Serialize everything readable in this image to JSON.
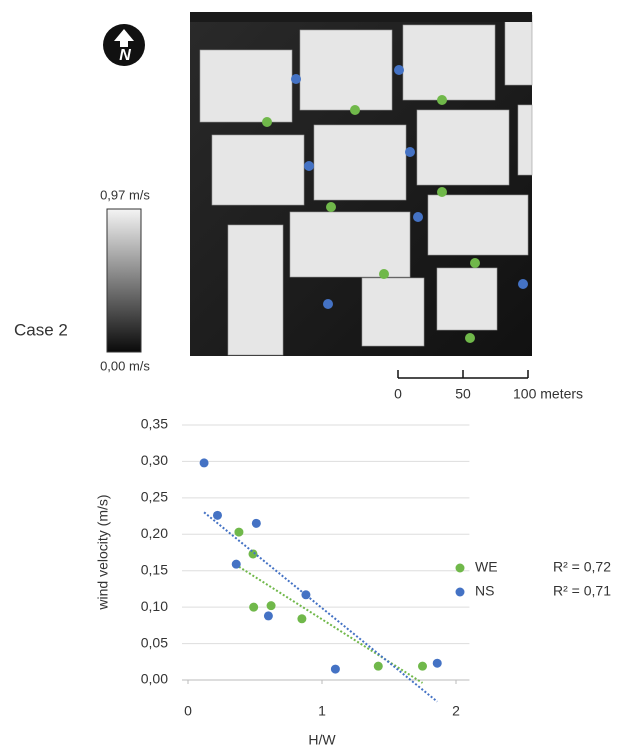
{
  "map": {
    "north": "N",
    "legend_max": "0,97 m/s",
    "legend_min": "0,00 m/s",
    "case": "Case 2",
    "scale": [
      "0",
      "50",
      "100 meters"
    ]
  },
  "chart_data": {
    "type": "scatter",
    "x_label": "H/W",
    "y_label": "wind velocity (m/s)",
    "xlim": [
      0,
      2.1
    ],
    "ylim": [
      0,
      0.35
    ],
    "xticks": [
      0,
      1,
      2
    ],
    "yticks": [
      {
        "value": 0,
        "label": "0,00"
      },
      {
        "value": 0.05,
        "label": "0,05"
      },
      {
        "value": 0.1,
        "label": "0,10"
      },
      {
        "value": 0.15,
        "label": "0,15"
      },
      {
        "value": 0.2,
        "label": "0,20"
      },
      {
        "value": 0.25,
        "label": "0,25"
      },
      {
        "value": 0.3,
        "label": "0,30"
      },
      {
        "value": 0.35,
        "label": "0,35"
      }
    ],
    "trendline": true,
    "series": [
      {
        "name": "WE",
        "color": "#70b84a",
        "r2_label": "R² = 0,72",
        "x": [
          0.38,
          0.485,
          0.49,
          0.62,
          0.85,
          1.42,
          1.75
        ],
        "values": [
          0.203,
          0.173,
          0.1,
          0.102,
          0.084,
          0.019,
          0.019
        ]
      },
      {
        "name": "NS",
        "color": "#4472c4",
        "r2_label": "R² = 0,71",
        "x": [
          0.12,
          0.22,
          0.51,
          0.36,
          0.6,
          0.88,
          1.1,
          1.86
        ],
        "values": [
          0.298,
          0.226,
          0.215,
          0.159,
          0.088,
          0.117,
          0.015,
          0.023
        ]
      }
    ]
  }
}
